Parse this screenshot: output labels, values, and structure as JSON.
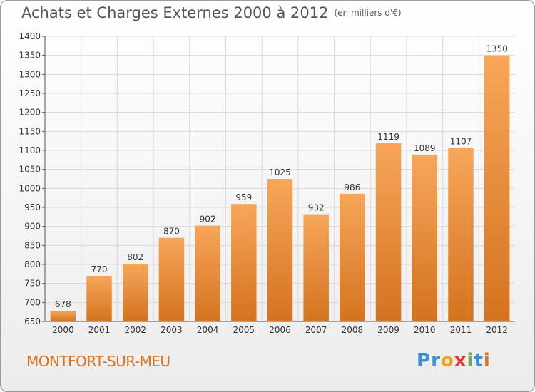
{
  "header": {
    "title": "Achats et Charges Externes 2000 à 2012",
    "subtitle": "(en milliers d'€)"
  },
  "footer": {
    "city": "MONTFORT-SUR-MEU",
    "brand": "Proxiti",
    "brand_letters": [
      "P",
      "r",
      "o",
      "x",
      "i",
      "t",
      "i"
    ],
    "brand_colors": [
      "#3a8fd8",
      "#3a8fd8",
      "#f0a21c",
      "#e23b2e",
      "#6ab04c",
      "#3a8fd8",
      "#e0701a"
    ]
  },
  "chart_data": {
    "type": "bar",
    "title": "Achats et Charges Externes 2000 à 2012",
    "subtitle": "(en milliers d'€)",
    "xlabel": "",
    "ylabel": "",
    "categories": [
      "2000",
      "2001",
      "2002",
      "2003",
      "2004",
      "2005",
      "2006",
      "2007",
      "2008",
      "2009",
      "2010",
      "2011",
      "2012"
    ],
    "values": [
      678,
      770,
      802,
      870,
      902,
      959,
      1025,
      932,
      986,
      1119,
      1089,
      1107,
      1350
    ],
    "ylim": [
      650,
      1400
    ],
    "yticks": [
      650,
      700,
      750,
      800,
      850,
      900,
      950,
      1000,
      1050,
      1100,
      1150,
      1200,
      1250,
      1300,
      1350,
      1400
    ],
    "grid": true,
    "colors": {
      "bar_light": "#f7a65a",
      "bar_dark": "#d4731f",
      "grid": "#d9d9d9"
    }
  }
}
